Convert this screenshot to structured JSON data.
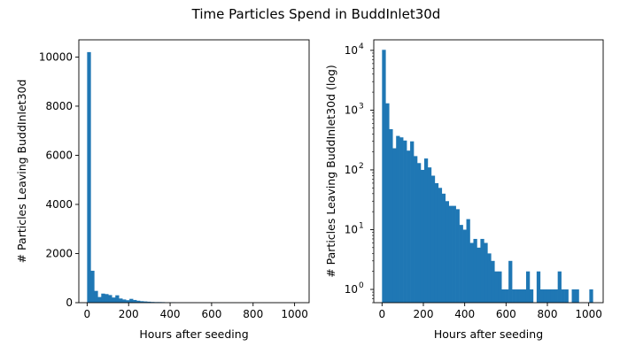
{
  "figure": {
    "title": "Time Particles Spend in BuddInlet30d"
  },
  "chart_data": [
    {
      "type": "bar",
      "subtype": "histogram",
      "xlabel": "Hours after seeding",
      "ylabel": "# Particles Leaving BuddInlet30d",
      "xlim": [
        -40,
        1070
      ],
      "ylim": [
        0,
        10700
      ],
      "yscale": "linear",
      "xticks": [
        0,
        200,
        400,
        600,
        800,
        1000
      ],
      "xtick_labels": [
        "0",
        "200",
        "400",
        "600",
        "800",
        "1000"
      ],
      "yticks": [
        0,
        2000,
        4000,
        6000,
        8000,
        10000
      ],
      "ytick_labels": [
        "0",
        "2000",
        "4000",
        "6000",
        "8000",
        "10000"
      ],
      "bar_color": "#1f77b4",
      "bin_width": 17,
      "bin_starts": [
        0,
        17,
        34,
        51,
        68,
        85,
        102,
        119,
        136,
        153,
        170,
        187,
        204,
        221,
        238,
        255,
        272,
        289,
        306,
        323,
        340,
        357,
        374,
        391,
        408,
        425,
        442,
        459,
        476,
        493,
        510,
        527,
        544,
        561,
        578,
        595,
        612,
        629,
        646,
        663,
        680,
        697,
        714,
        731,
        748,
        765,
        782,
        799,
        816,
        833,
        850,
        867,
        884,
        901,
        918,
        935,
        952,
        969,
        986,
        1003
      ],
      "counts": [
        10200,
        1300,
        480,
        230,
        370,
        350,
        310,
        210,
        300,
        170,
        130,
        100,
        155,
        110,
        80,
        60,
        50,
        40,
        30,
        25,
        25,
        22,
        12,
        10,
        15,
        6,
        7,
        5,
        7,
        6,
        4,
        3,
        2,
        2,
        1,
        1,
        3,
        1,
        1,
        1,
        1,
        2,
        1,
        0,
        2,
        1,
        1,
        1,
        1,
        1,
        2,
        1,
        1,
        0,
        1,
        1,
        0,
        0,
        0,
        1
      ]
    },
    {
      "type": "bar",
      "subtype": "histogram",
      "xlabel": "Hours after seeding",
      "ylabel": "# Particles Leaving BuddInlet30d (log)",
      "xlim": [
        -40,
        1070
      ],
      "yscale": "log",
      "ylim": [
        0.6,
        15000
      ],
      "xticks": [
        0,
        200,
        400,
        600,
        800,
        1000
      ],
      "xtick_labels": [
        "0",
        "200",
        "400",
        "600",
        "800",
        "1000"
      ],
      "yticks": [
        1,
        10,
        100,
        1000,
        10000
      ],
      "ytick_labels": [
        {
          "base": "10",
          "exp": "0"
        },
        {
          "base": "10",
          "exp": "1"
        },
        {
          "base": "10",
          "exp": "2"
        },
        {
          "base": "10",
          "exp": "3"
        },
        {
          "base": "10",
          "exp": "4"
        }
      ],
      "bar_color": "#1f77b4",
      "bin_width": 17,
      "bin_starts": [
        0,
        17,
        34,
        51,
        68,
        85,
        102,
        119,
        136,
        153,
        170,
        187,
        204,
        221,
        238,
        255,
        272,
        289,
        306,
        323,
        340,
        357,
        374,
        391,
        408,
        425,
        442,
        459,
        476,
        493,
        510,
        527,
        544,
        561,
        578,
        595,
        612,
        629,
        646,
        663,
        680,
        697,
        714,
        731,
        748,
        765,
        782,
        799,
        816,
        833,
        850,
        867,
        884,
        901,
        918,
        935,
        952,
        969,
        986,
        1003
      ],
      "counts": [
        10200,
        1300,
        480,
        230,
        370,
        350,
        310,
        210,
        300,
        170,
        130,
        100,
        155,
        110,
        80,
        60,
        50,
        40,
        30,
        25,
        25,
        22,
        12,
        10,
        15,
        6,
        7,
        5,
        7,
        6,
        4,
        3,
        2,
        2,
        1,
        1,
        3,
        1,
        1,
        1,
        1,
        2,
        1,
        0,
        2,
        1,
        1,
        1,
        1,
        1,
        2,
        1,
        1,
        0,
        1,
        1,
        0,
        0,
        0,
        1
      ]
    }
  ]
}
